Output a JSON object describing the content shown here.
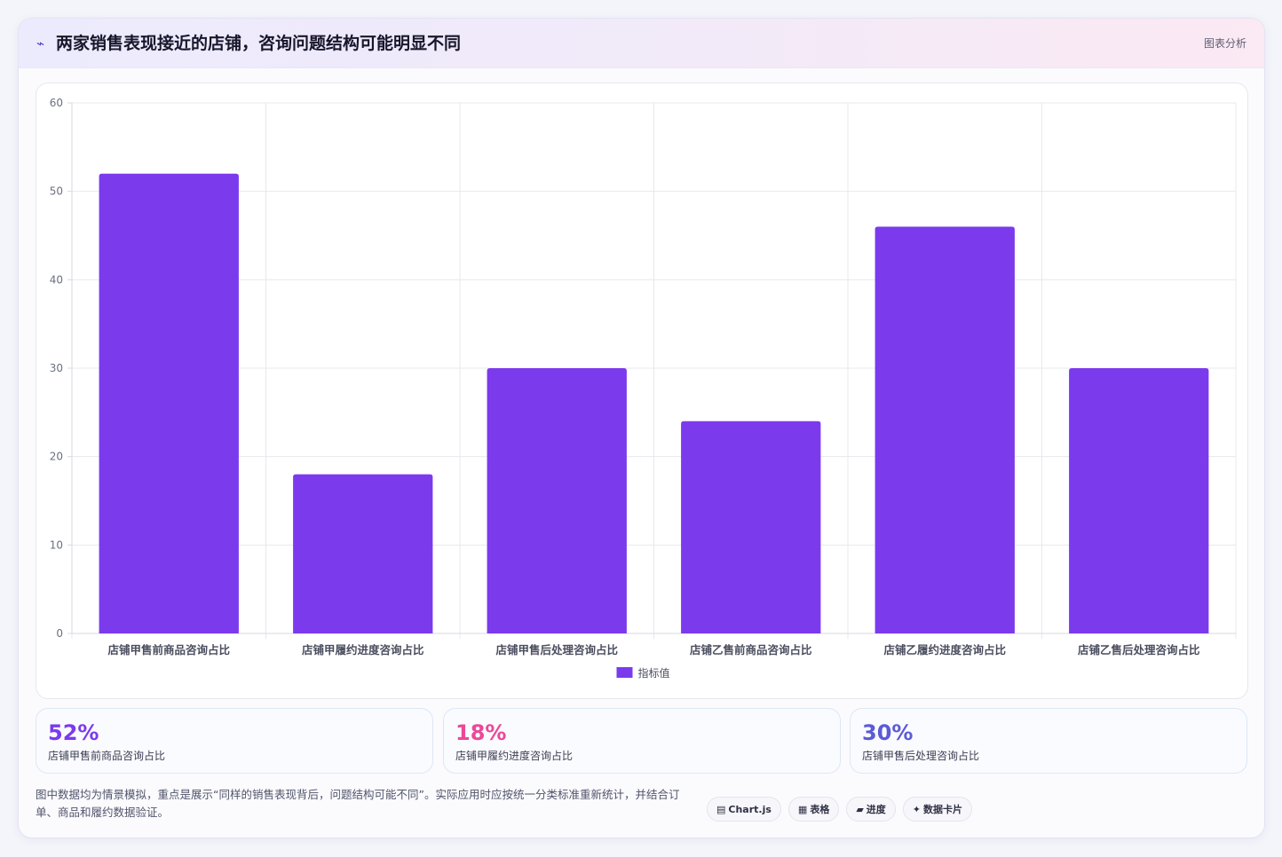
{
  "header": {
    "icon": "chart-line-icon",
    "title": "两家销售表现接近的店铺，咨询问题结构可能明显不同",
    "tag": "图表分析"
  },
  "chart_data": {
    "type": "bar",
    "categories": [
      "店铺甲售前商品咨询占比",
      "店铺甲履约进度咨询占比",
      "店铺甲售后处理咨询占比",
      "店铺乙售前商品咨询占比",
      "店铺乙履约进度咨询占比",
      "店铺乙售后处理咨询占比"
    ],
    "series": [
      {
        "name": "指标值",
        "values": [
          52,
          18,
          30,
          24,
          46,
          30
        ],
        "color": "#7c3aed"
      }
    ],
    "ylim": [
      0,
      60
    ],
    "yticks": [
      "0",
      "10",
      "20",
      "30",
      "40",
      "50",
      "60"
    ],
    "grid": true,
    "legend_position": "bottom"
  },
  "stats": [
    {
      "value": "52%",
      "label": "店铺甲售前商品咨询占比",
      "color": "#7c3aed"
    },
    {
      "value": "18%",
      "label": "店铺甲履约进度咨询占比",
      "color": "#ec4899"
    },
    {
      "value": "30%",
      "label": "店铺甲售后处理咨询占比",
      "color": "#5b5bd6"
    }
  ],
  "footnote": "图中数据均为情景模拟，重点是展示“同样的销售表现背后，问题结构可能不同”。实际应用时应按统一分类标准重新统计，并结合订单、商品和履约数据验证。",
  "chips": [
    {
      "icon": "▤",
      "label": "Chart.js"
    },
    {
      "icon": "▦",
      "label": "表格"
    },
    {
      "icon": "▰",
      "label": "进度"
    },
    {
      "icon": "✦",
      "label": "数据卡片"
    }
  ]
}
